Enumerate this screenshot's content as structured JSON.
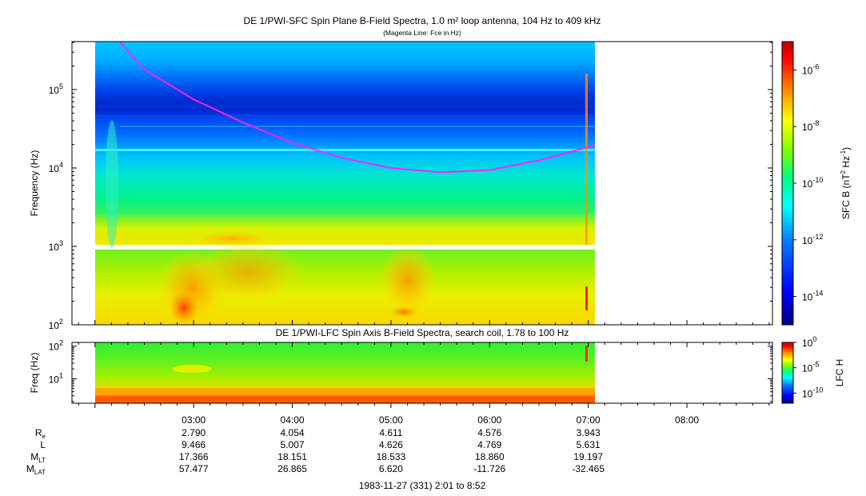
{
  "colors": {
    "fce_line": "#ff20ff",
    "colorbar_stops": [
      "#00007f",
      "#0000ff",
      "#007fff",
      "#00ffff",
      "#00ff7f",
      "#7fff00",
      "#ffff00",
      "#ff7f00",
      "#ff0000",
      "#c00000"
    ]
  },
  "chart_data": [
    {
      "type": "heatmap",
      "title": "DE 1/PWI-SFC  Spin Plane B-Field Spectra, 1.0 m² loop antenna, 104 Hz to 409 kHz",
      "subtitle": "(Magenta Line: Fce in Hz)",
      "ylabel": "Frequency (Hz)",
      "y_scale": "log",
      "ylim": [
        100,
        409000
      ],
      "yticks": [
        {
          "value": 100,
          "base": "10",
          "exp": "2"
        },
        {
          "value": 1000,
          "base": "10",
          "exp": "3"
        },
        {
          "value": 10000,
          "base": "10",
          "exp": "4"
        },
        {
          "value": 100000,
          "base": "10",
          "exp": "5"
        }
      ],
      "data_time_range": [
        "02:01",
        "07:12"
      ],
      "data_gap_hz": [
        900,
        1050
      ],
      "colorbar": {
        "label": "SFC B (nT",
        "label_exp1": "2",
        "label_mid": " Hz",
        "label_exp2": "-1",
        "label_end": ")",
        "scale": "log",
        "range": [
          1e-15,
          1e-05
        ],
        "ticks": [
          {
            "value": 1e-06,
            "base": "10",
            "exp": "-6"
          },
          {
            "value": 1e-08,
            "base": "10",
            "exp": "-8"
          },
          {
            "value": 1e-10,
            "base": "10",
            "exp": "-10"
          },
          {
            "value": 1e-12,
            "base": "10",
            "exp": "-12"
          },
          {
            "value": 1e-14,
            "base": "10",
            "exp": "-14"
          }
        ]
      },
      "fce_line": {
        "name": "Fce",
        "points": [
          {
            "time": "02:15",
            "hz": 409000
          },
          {
            "time": "02:30",
            "hz": 180000
          },
          {
            "time": "03:00",
            "hz": 75000
          },
          {
            "time": "03:30",
            "hz": 38000
          },
          {
            "time": "04:00",
            "hz": 21000
          },
          {
            "time": "04:30",
            "hz": 13500
          },
          {
            "time": "05:00",
            "hz": 10000
          },
          {
            "time": "05:30",
            "hz": 8800
          },
          {
            "time": "06:00",
            "hz": 9400
          },
          {
            "time": "06:30",
            "hz": 12500
          },
          {
            "time": "07:00",
            "hz": 18500
          },
          {
            "time": "07:12",
            "hz": 22000
          }
        ]
      }
    },
    {
      "type": "heatmap",
      "title": "DE 1/PWI-LFC  Spin Axis B-Field Spectra, search coil, 1.78 to 100 Hz",
      "ylabel": "Freq (Hz)",
      "y_scale": "log",
      "ylim": [
        1.78,
        130
      ],
      "yticks": [
        {
          "value": 10,
          "base": "10",
          "exp": "1"
        },
        {
          "value": 100,
          "base": "10",
          "exp": "2"
        }
      ],
      "colorbar": {
        "label": "LFC H",
        "scale": "log",
        "range": [
          1e-12,
          1
        ],
        "ticks": [
          {
            "value": 1,
            "base": "10",
            "exp": "0"
          },
          {
            "value": 1e-05,
            "base": "10",
            "exp": "-5"
          },
          {
            "value": 1e-10,
            "base": "10",
            "exp": "-10"
          }
        ]
      }
    }
  ],
  "time_axis": {
    "range": [
      "01:46",
      "08:52"
    ],
    "ticks": [
      "03:00",
      "04:00",
      "05:00",
      "06:00",
      "07:00",
      "08:00"
    ]
  },
  "ephemeris": {
    "rows": [
      {
        "label": "R",
        "sub": "e",
        "values": [
          "2.790",
          "4.054",
          "4.611",
          "4.576",
          "3.943",
          ""
        ]
      },
      {
        "label": "L",
        "sub": "",
        "values": [
          "9.466",
          "5.007",
          "4.626",
          "4.769",
          "5.631",
          ""
        ]
      },
      {
        "label": "M",
        "sub": "LT",
        "values": [
          "17.366",
          "18.151",
          "18.533",
          "18.860",
          "19.197",
          ""
        ]
      },
      {
        "label": "M",
        "sub": "LAT",
        "values": [
          "57.477",
          "26.865",
          "6.620",
          "-11.726",
          "-32.465",
          ""
        ]
      }
    ]
  },
  "footer": "1983-11-27 (331) 2:01 to 8:52"
}
